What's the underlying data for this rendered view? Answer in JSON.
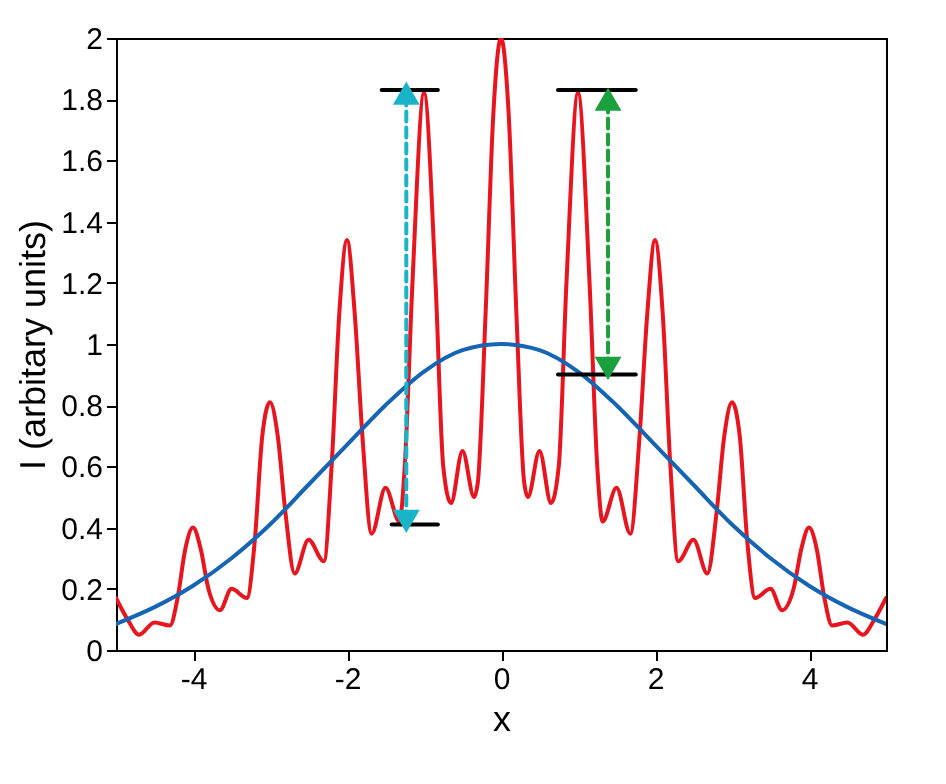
{
  "chart_data": {
    "type": "line",
    "xlabel": "x",
    "ylabel": "I (arbitary units)",
    "xlim": [
      -5,
      5
    ],
    "xticks": [
      -4,
      -2,
      0,
      2,
      4
    ],
    "ylim": [
      0,
      2
    ],
    "yticks": [
      0,
      0.2,
      0.4,
      0.6,
      0.8,
      1,
      1.2,
      1.4,
      1.6,
      1.8,
      2
    ],
    "grid": false,
    "series": [
      {
        "color": "#e8141e",
        "x": [
          -5.0,
          -4.85,
          -4.7,
          -4.5,
          -4.3,
          -4.2,
          -4.1,
          -4.0,
          -3.9,
          -3.8,
          -3.65,
          -3.5,
          -3.3,
          -3.2,
          -3.1,
          -3.0,
          -2.9,
          -2.8,
          -2.68,
          -2.5,
          -2.3,
          -2.2,
          -2.1,
          -2.0,
          -1.9,
          -1.8,
          -1.68,
          -1.5,
          -1.32,
          -1.25,
          -1.15,
          -1.0,
          -0.85,
          -0.75,
          -0.65,
          -0.5,
          -0.35,
          -0.3,
          -0.2,
          -0.1,
          0,
          0.1,
          0.2,
          0.3,
          0.35,
          0.5,
          0.65,
          0.75,
          0.85,
          1.0,
          1.15,
          1.25,
          1.32,
          1.5,
          1.68,
          1.8,
          1.9,
          2.0,
          2.1,
          2.2,
          2.3,
          2.5,
          2.68,
          2.8,
          2.9,
          3.0,
          3.1,
          3.2,
          3.3,
          3.5,
          3.65,
          3.8,
          3.9,
          4.0,
          4.1,
          4.2,
          4.3,
          4.5,
          4.7,
          4.85,
          5.0
        ],
        "values": [
          0.17,
          0.1,
          0.05,
          0.09,
          0.08,
          0.17,
          0.33,
          0.4,
          0.33,
          0.2,
          0.13,
          0.2,
          0.17,
          0.35,
          0.7,
          0.81,
          0.7,
          0.45,
          0.25,
          0.36,
          0.29,
          0.6,
          1.1,
          1.34,
          1.1,
          0.7,
          0.38,
          0.53,
          0.42,
          0.6,
          1.2,
          1.82,
          1.2,
          0.6,
          0.48,
          0.65,
          0.5,
          0.55,
          1.1,
          1.75,
          2.0,
          1.75,
          1.1,
          0.55,
          0.5,
          0.65,
          0.48,
          0.6,
          1.2,
          1.82,
          1.2,
          0.6,
          0.42,
          0.53,
          0.38,
          0.7,
          1.1,
          1.34,
          1.1,
          0.6,
          0.29,
          0.36,
          0.25,
          0.45,
          0.7,
          0.81,
          0.7,
          0.35,
          0.17,
          0.2,
          0.13,
          0.2,
          0.33,
          0.4,
          0.33,
          0.17,
          0.08,
          0.09,
          0.05,
          0.1,
          0.17
        ]
      },
      {
        "color": "#1565b4",
        "x": [
          -5,
          -4.5,
          -4,
          -3.5,
          -3,
          -2.5,
          -2,
          -1.5,
          -1,
          -0.5,
          0,
          0.5,
          1,
          1.5,
          2,
          2.5,
          3,
          3.5,
          4,
          4.5,
          5
        ],
        "values": [
          0.085,
          0.14,
          0.21,
          0.3,
          0.41,
          0.54,
          0.67,
          0.8,
          0.91,
          0.98,
          1.0,
          0.98,
          0.91,
          0.8,
          0.67,
          0.54,
          0.41,
          0.3,
          0.21,
          0.14,
          0.085
        ]
      },
      {
        "type": "line",
        "color": "#000000",
        "x": [
          -1.55,
          -0.82
        ],
        "values": [
          1.83,
          1.83
        ]
      },
      {
        "type": "line",
        "color": "#000000",
        "x": [
          -1.42,
          -0.82
        ],
        "values": [
          0.41,
          0.41
        ]
      },
      {
        "type": "line",
        "color": "#000000",
        "x": [
          0.74,
          1.75
        ],
        "values": [
          1.83,
          1.83
        ]
      },
      {
        "type": "line",
        "color": "#000000",
        "x": [
          0.74,
          1.75
        ],
        "values": [
          0.9,
          0.9
        ]
      },
      {
        "type": "line",
        "color": "#1ab4c8",
        "line_style": "dashed",
        "marker": "triangle",
        "x": [
          -1.23,
          -1.23
        ],
        "values": [
          0.42,
          1.82
        ]
      },
      {
        "type": "line",
        "color": "#1aa03c",
        "line_style": "dashed",
        "marker": "triangle",
        "x": [
          1.39,
          1.39
        ],
        "values": [
          0.92,
          1.8
        ]
      }
    ]
  }
}
